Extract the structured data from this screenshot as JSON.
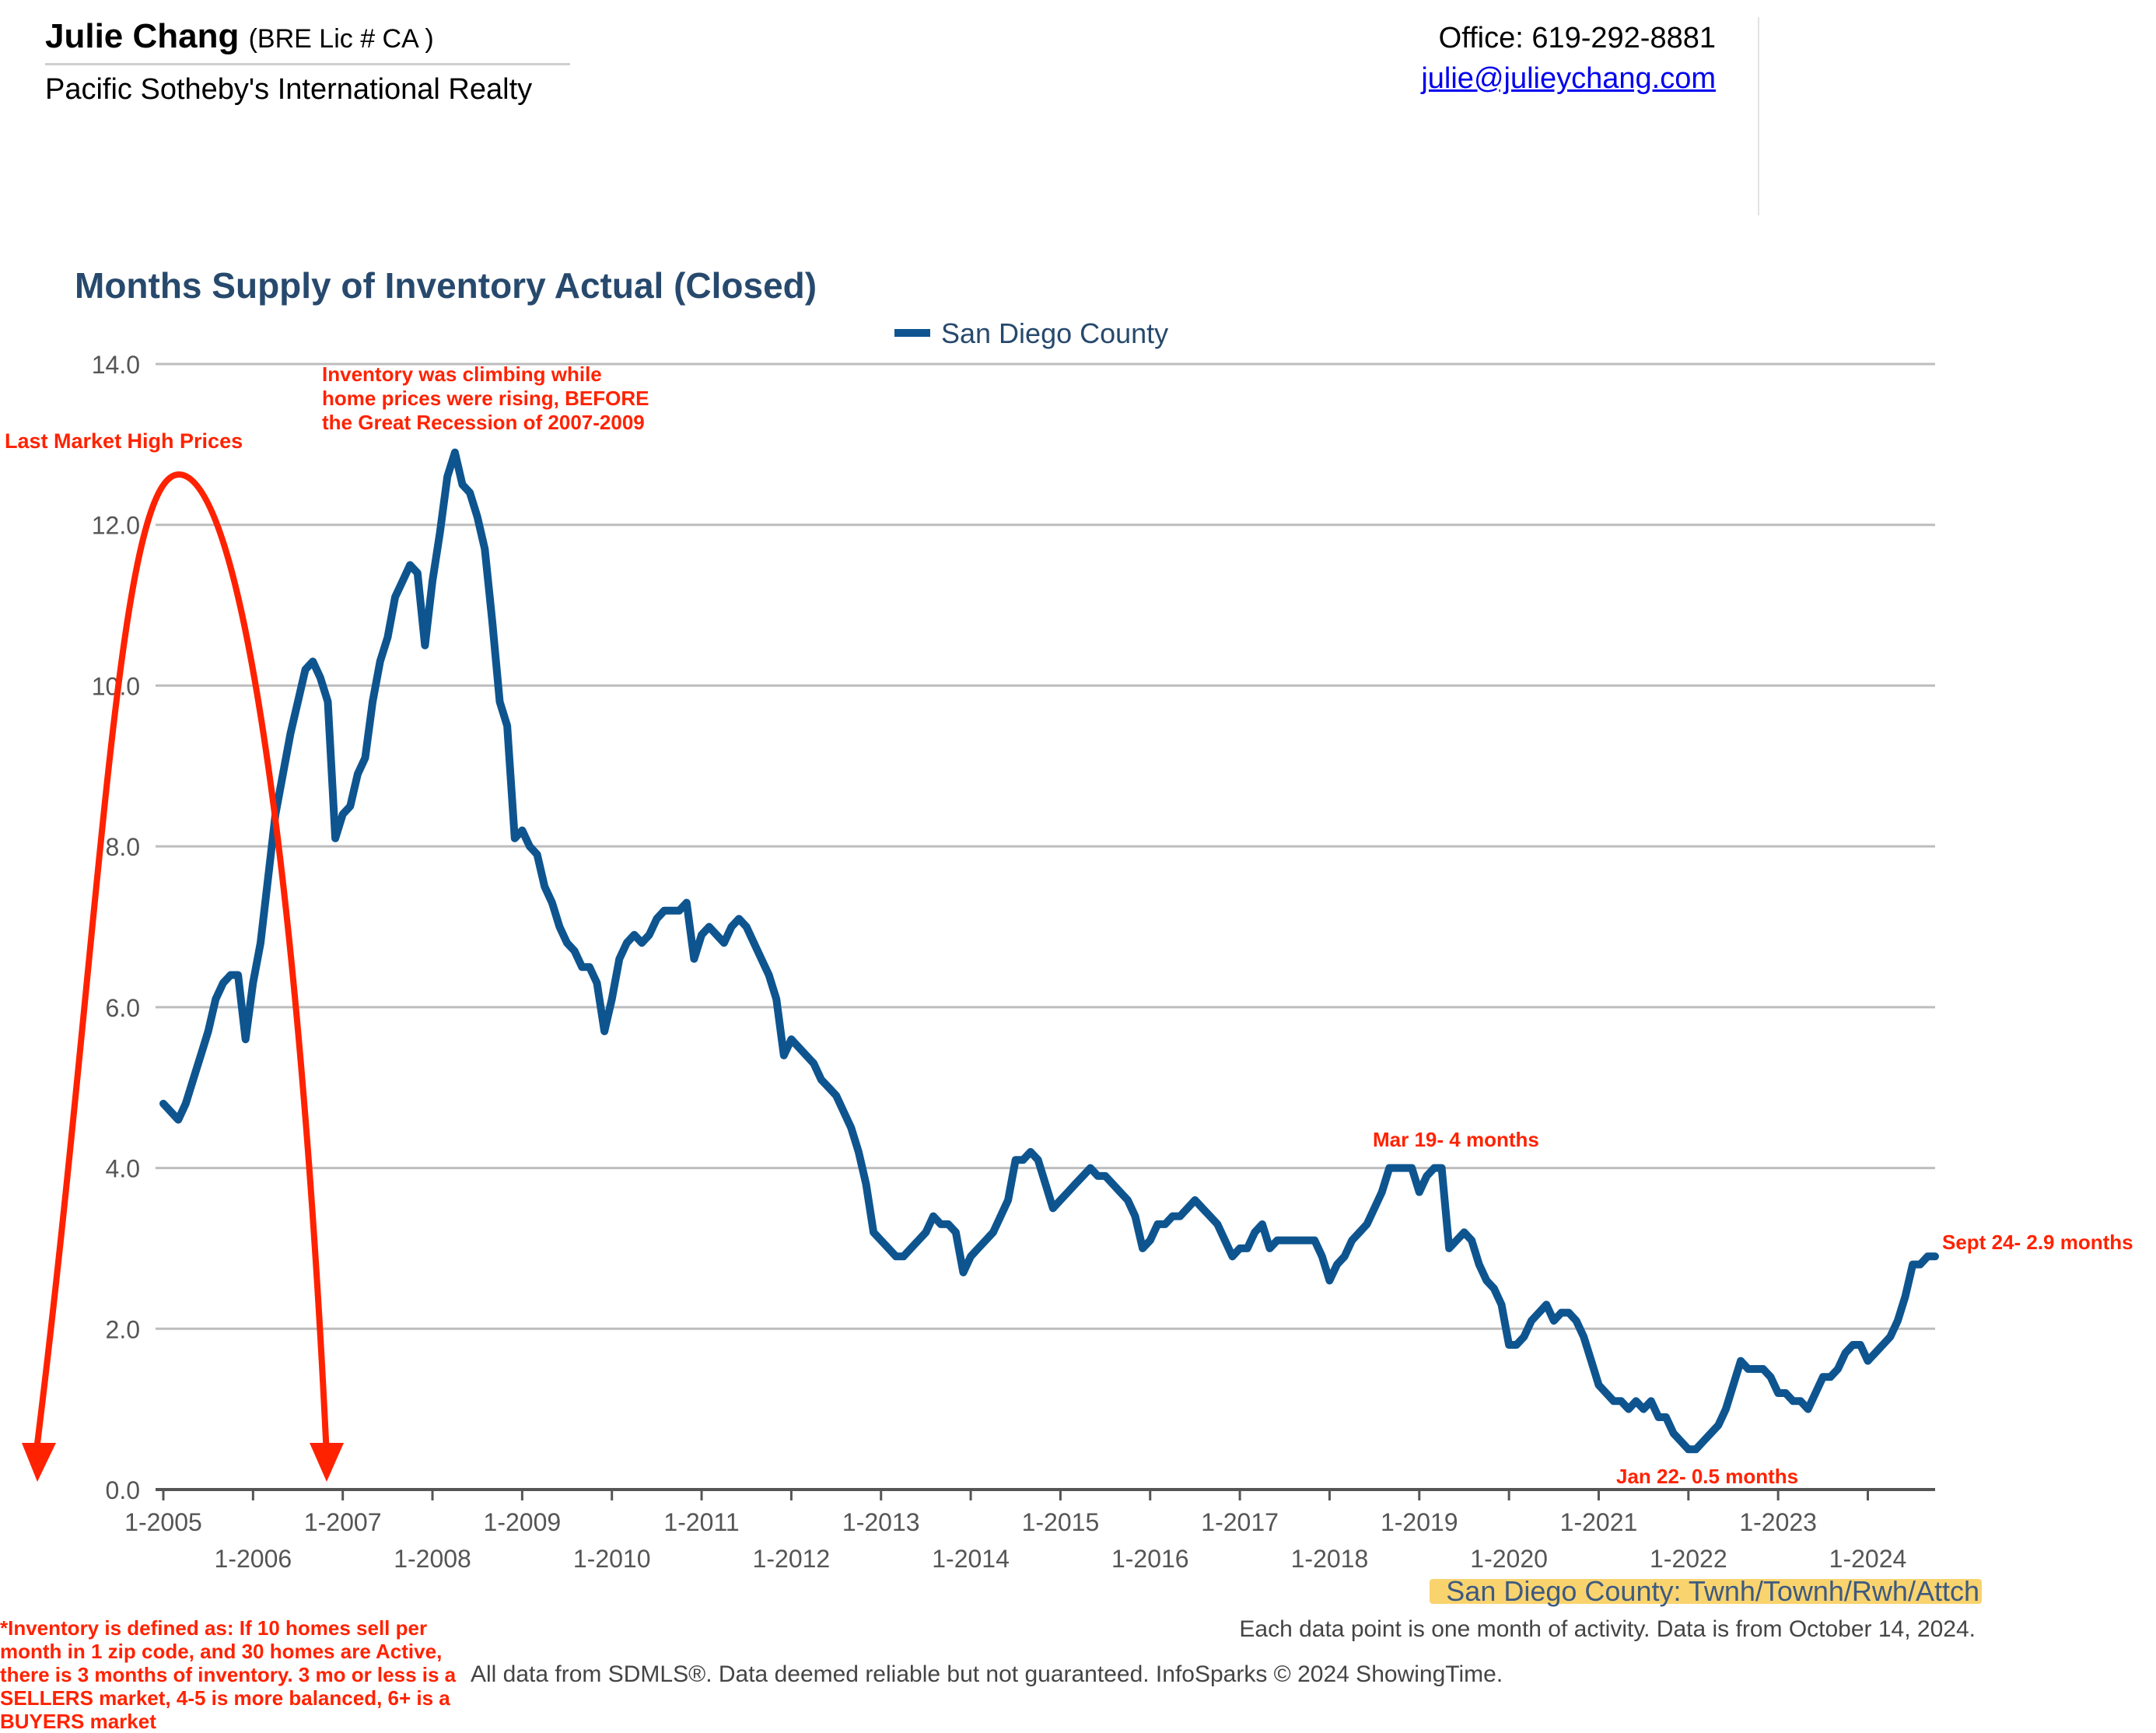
{
  "header": {
    "agent_name": "Julie Chang",
    "agent_license": "(BRE Lic # CA )",
    "company": "Pacific Sotheby's International Realty",
    "office": "Office: 619-292-8881",
    "email": "julie@julieychang.com"
  },
  "footer": {
    "definition": "*Inventory is defined as: If 10 homes sell per month in 1 zip code, and 30 homes are Active, there is 3 months of inventory. 3 mo or less is a SELLERS market, 4-5 is more balanced, 6+ is a BUYERS market",
    "note": "Each data point is one month of activity. Data is from October 14, 2024.",
    "source": "All data from SDMLS®. Data deemed reliable but not guaranteed. InfoSparks © 2024 ShowingTime."
  },
  "colors": {
    "series": "#0e5590",
    "annotation": "#ff2200",
    "title": "#27496d",
    "highlight": "#f9d36e"
  },
  "chart_data": {
    "type": "line",
    "title": "Months Supply of Inventory Actual (Closed)",
    "subtitle": "San Diego County: Twnh/Townh/Rwh/Attch",
    "xlabel": "",
    "ylabel": "",
    "ylim": [
      0,
      14
    ],
    "yticks": [
      "0.0",
      "2.0",
      "4.0",
      "6.0",
      "8.0",
      "10.0",
      "12.0",
      "14.0"
    ],
    "xticks": [
      "1-2005",
      "1-2006",
      "1-2007",
      "1-2008",
      "1-2009",
      "1-2010",
      "1-2011",
      "1-2012",
      "1-2013",
      "1-2014",
      "1-2015",
      "1-2016",
      "1-2017",
      "1-2018",
      "1-2019",
      "1-2020",
      "1-2021",
      "1-2022",
      "1-2023",
      "1-2024"
    ],
    "grid": true,
    "legend": "top-center",
    "series": [
      {
        "name": "San Diego County",
        "start": "2005-01",
        "frequency": "monthly",
        "values": [
          4.8,
          4.7,
          4.6,
          4.8,
          5.1,
          5.4,
          5.7,
          6.1,
          6.3,
          6.4,
          6.4,
          5.6,
          6.3,
          6.8,
          7.6,
          8.4,
          8.9,
          9.4,
          9.8,
          10.2,
          10.3,
          10.1,
          9.8,
          8.1,
          8.4,
          8.5,
          8.9,
          9.1,
          9.8,
          10.3,
          10.6,
          11.1,
          11.3,
          11.5,
          11.4,
          10.5,
          11.3,
          11.9,
          12.6,
          12.9,
          12.5,
          12.4,
          12.1,
          11.7,
          10.8,
          9.8,
          9.5,
          8.1,
          8.2,
          8.0,
          7.9,
          7.5,
          7.3,
          7.0,
          6.8,
          6.7,
          6.5,
          6.5,
          6.3,
          5.7,
          6.1,
          6.6,
          6.8,
          6.9,
          6.8,
          6.9,
          7.1,
          7.2,
          7.2,
          7.2,
          7.3,
          6.6,
          6.9,
          7.0,
          6.9,
          6.8,
          7.0,
          7.1,
          7.0,
          6.8,
          6.6,
          6.4,
          6.1,
          5.4,
          5.6,
          5.5,
          5.4,
          5.3,
          5.1,
          5.0,
          4.9,
          4.7,
          4.5,
          4.2,
          3.8,
          3.2,
          3.1,
          3.0,
          2.9,
          2.9,
          3.0,
          3.1,
          3.2,
          3.4,
          3.3,
          3.3,
          3.2,
          2.7,
          2.9,
          3.0,
          3.1,
          3.2,
          3.4,
          3.6,
          4.1,
          4.1,
          4.2,
          4.1,
          3.8,
          3.5,
          3.6,
          3.7,
          3.8,
          3.9,
          4.0,
          3.9,
          3.9,
          3.8,
          3.7,
          3.6,
          3.4,
          3.0,
          3.1,
          3.3,
          3.3,
          3.4,
          3.4,
          3.5,
          3.6,
          3.5,
          3.4,
          3.3,
          3.1,
          2.9,
          3.0,
          3.0,
          3.2,
          3.3,
          3.0,
          3.1,
          3.1,
          3.1,
          3.1,
          3.1,
          3.1,
          2.9,
          2.6,
          2.8,
          2.9,
          3.1,
          3.2,
          3.3,
          3.5,
          3.7,
          4.0,
          4.0,
          4.0,
          4.0,
          3.7,
          3.9,
          4.0,
          4.0,
          3.0,
          3.1,
          3.2,
          3.1,
          2.8,
          2.6,
          2.5,
          2.3,
          1.8,
          1.8,
          1.9,
          2.1,
          2.2,
          2.3,
          2.1,
          2.2,
          2.2,
          2.1,
          1.9,
          1.6,
          1.3,
          1.2,
          1.1,
          1.1,
          1.0,
          1.1,
          1.0,
          1.1,
          0.9,
          0.9,
          0.7,
          0.6,
          0.5,
          0.5,
          0.6,
          0.7,
          0.8,
          1.0,
          1.3,
          1.6,
          1.5,
          1.5,
          1.5,
          1.4,
          1.2,
          1.2,
          1.1,
          1.1,
          1.0,
          1.2,
          1.4,
          1.4,
          1.5,
          1.7,
          1.8,
          1.8,
          1.6,
          1.7,
          1.8,
          1.9,
          2.1,
          2.4,
          2.8,
          2.8,
          2.9,
          2.9
        ]
      }
    ],
    "annotations": [
      {
        "text": "Last Market High Prices"
      },
      {
        "text": "Inventory was climbing while home prices were rising, BEFORE the Great Recession of 2007-2009"
      },
      {
        "text": "Mar 19- 4 months"
      },
      {
        "text": "Sept 24- 2.9 months"
      },
      {
        "text": "Jan 22- 0.5 months"
      }
    ]
  }
}
